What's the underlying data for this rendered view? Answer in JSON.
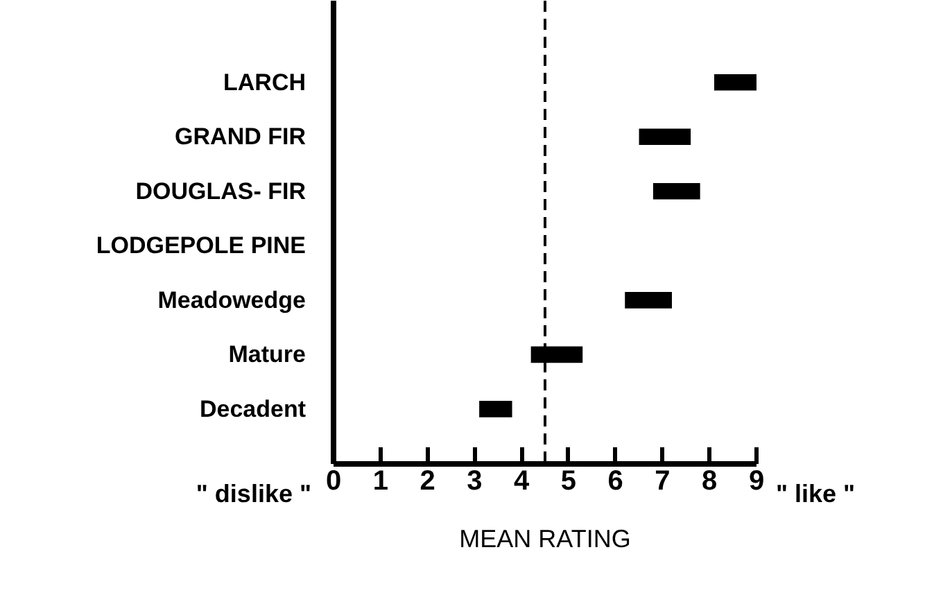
{
  "chart_data": {
    "type": "bar",
    "orientation": "horizontal",
    "xlabel": "MEAN RATING",
    "categories": [
      "LARCH",
      "GRAND FIR",
      "DOUGLAS- FIR",
      "LODGEPOLE PINE",
      "Meadowedge",
      "Mature",
      "Decadent"
    ],
    "base": [
      8.1,
      6.5,
      6.8,
      null,
      6.2,
      4.2,
      3.1
    ],
    "values": [
      0.9,
      1.1,
      1.0,
      null,
      1.0,
      1.1,
      0.7
    ],
    "color": "#000000",
    "xlim": [
      0,
      9
    ],
    "xticks": [
      0,
      1,
      2,
      3,
      4,
      5,
      6,
      7,
      8,
      9
    ],
    "ref_lines": [
      {
        "axis": "x",
        "value": 4.5,
        "line_style": "dashed",
        "color": "#000000"
      }
    ],
    "annotations": [
      "\" dislike \"",
      "\" like \""
    ],
    "grid": false
  }
}
